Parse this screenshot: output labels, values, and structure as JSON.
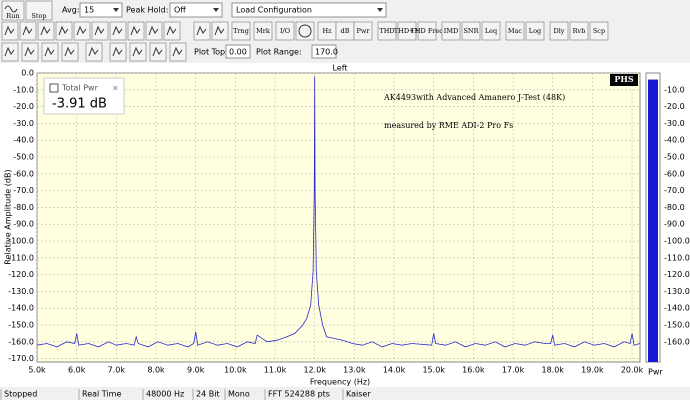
{
  "toolbar": {
    "run": "Run",
    "stop": "Stop",
    "avg_label": "Avg:",
    "avg_value": "15",
    "peak_hold_label": "Peak Hold:",
    "peak_hold_value": "Off",
    "configuration": "Load Configuration",
    "buttons": [
      "Trng",
      "Mrk",
      "I/O",
      "Hz",
      "dB",
      "Pwr",
      "THD",
      "THD+N",
      "THD Freq",
      "IMD",
      "SNR",
      "Leq",
      "Mac",
      "Log",
      "Dly",
      "Rvb",
      "Scp"
    ],
    "plot_top_label": "Plot Top:",
    "plot_top_value": "0.00",
    "plot_range_label": "Plot Range:",
    "plot_range_value": "170.0"
  },
  "total_power": {
    "label": "Total Pwr",
    "value": "-3.91 dB"
  },
  "logo": "PHS",
  "chart_data": {
    "type": "line",
    "title": "Left",
    "x_label": "Frequency (Hz)",
    "y_label": "Relative Amplitude (dB)",
    "annotations": [
      "AK4493with Advanced Amanero J-Test (48K)",
      "measured by RME ADI-2 Pro Fs"
    ],
    "xlim": [
      5000,
      20200
    ],
    "ylim": [
      -172,
      0
    ],
    "grid": true,
    "background": "#ffffe0",
    "xticks": [
      {
        "value": 5000,
        "label": "5.0k"
      },
      {
        "value": 6000,
        "label": "6.0k"
      },
      {
        "value": 7000,
        "label": "7.0k"
      },
      {
        "value": 8000,
        "label": "8.0k"
      },
      {
        "value": 9000,
        "label": "9.0k"
      },
      {
        "value": 10000,
        "label": "10.0k"
      },
      {
        "value": 11000,
        "label": "11.0k"
      },
      {
        "value": 12000,
        "label": "12.0k"
      },
      {
        "value": 13000,
        "label": "13.0k"
      },
      {
        "value": 14000,
        "label": "14.0k"
      },
      {
        "value": 15000,
        "label": "15.0k"
      },
      {
        "value": 16000,
        "label": "16.0k"
      },
      {
        "value": 17000,
        "label": "17.0k"
      },
      {
        "value": 18000,
        "label": "18.0k"
      },
      {
        "value": 19000,
        "label": "19.0k"
      },
      {
        "value": 20000,
        "label": "20.0k"
      }
    ],
    "yticks": [
      {
        "value": 0,
        "label": "0.0"
      },
      {
        "value": -10,
        "label": "-10.0"
      },
      {
        "value": -20,
        "label": "-20.0"
      },
      {
        "value": -30,
        "label": "-30.0"
      },
      {
        "value": -40,
        "label": "-40.0"
      },
      {
        "value": -50,
        "label": "-50.0"
      },
      {
        "value": -60,
        "label": "-60.0"
      },
      {
        "value": -70,
        "label": "-70.0"
      },
      {
        "value": -80,
        "label": "-80.0"
      },
      {
        "value": -90,
        "label": "-90.0"
      },
      {
        "value": -100,
        "label": "-100.0"
      },
      {
        "value": -110,
        "label": "-110.0"
      },
      {
        "value": -120,
        "label": "-120.0"
      },
      {
        "value": -130,
        "label": "-130.0"
      },
      {
        "value": -140,
        "label": "-140.0"
      },
      {
        "value": -150,
        "label": "-150.0"
      },
      {
        "value": -160,
        "label": "-160.0"
      },
      {
        "value": -170,
        "label": "-170.0"
      }
    ],
    "series": [
      {
        "name": "Left",
        "color": "#2a2acf",
        "x": [
          5000,
          5250,
          5500,
          5750,
          5950,
          6000,
          6050,
          6300,
          6550,
          6800,
          7000,
          7250,
          7450,
          7500,
          7550,
          7800,
          8050,
          8300,
          8550,
          8800,
          8950,
          9000,
          9050,
          9300,
          9550,
          9800,
          10050,
          10300,
          10500,
          10550,
          10800,
          11050,
          11300,
          11500,
          11700,
          11800,
          11900,
          11960,
          11990,
          12000,
          12010,
          12040,
          12100,
          12200,
          12300,
          12500,
          12700,
          12950,
          13200,
          13450,
          13700,
          13950,
          14200,
          14450,
          14950,
          15000,
          15050,
          15300,
          15550,
          15800,
          16050,
          16300,
          16550,
          16800,
          17050,
          17300,
          17550,
          17800,
          17950,
          18000,
          18050,
          18300,
          18550,
          18800,
          19050,
          19300,
          19550,
          19800,
          19950,
          20000,
          20050,
          20200
        ],
        "values": [
          -162,
          -161,
          -163,
          -160,
          -161,
          -155,
          -162,
          -161,
          -163,
          -160,
          -162,
          -161,
          -162,
          -157,
          -161,
          -163,
          -160,
          -162,
          -161,
          -163,
          -161,
          -154,
          -162,
          -160,
          -162,
          -161,
          -163,
          -160,
          -161,
          -156,
          -160,
          -159,
          -157,
          -155,
          -150,
          -146,
          -138,
          -118,
          -70,
          -2,
          -70,
          -118,
          -138,
          -150,
          -157,
          -158,
          -159,
          -161,
          -162,
          -160,
          -163,
          -161,
          -162,
          -161,
          -162,
          -155,
          -161,
          -162,
          -160,
          -163,
          -161,
          -162,
          -160,
          -163,
          -161,
          -162,
          -160,
          -161,
          -161,
          -156,
          -162,
          -161,
          -163,
          -160,
          -162,
          -161,
          -163,
          -160,
          -161,
          -155,
          -162,
          -161
        ]
      }
    ]
  },
  "meter": {
    "label": "Pwr",
    "color": "#1818d8",
    "value": -3.91
  },
  "status": [
    "Stopped",
    "Real Time",
    "48000 Hz",
    "24 Bit",
    "Mono",
    "FFT 524288 pts",
    "Kaiser"
  ]
}
